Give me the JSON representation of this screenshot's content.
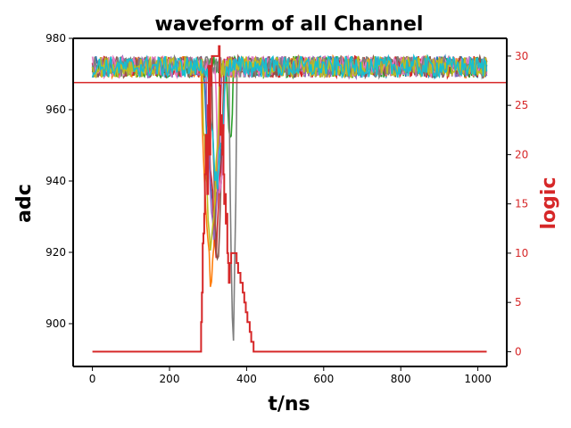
{
  "chart_data": {
    "type": "line",
    "title": "waveform of all Channel",
    "xlabel": "t/ns",
    "ylabel": "adc",
    "y2label": "logic",
    "xlim": [
      -50,
      1075
    ],
    "ylim": [
      888,
      980
    ],
    "y2lim": [
      -1.5,
      31.8
    ],
    "xticks": [
      0,
      200,
      400,
      600,
      800,
      1000
    ],
    "yticks": [
      900,
      920,
      940,
      960,
      980
    ],
    "y2ticks": [
      0,
      5,
      10,
      15,
      20,
      25,
      30
    ],
    "grid": false,
    "legend": "none",
    "colors": {
      "axis_right": "#d62728",
      "threshold": "#d62728",
      "logic": "#d62728"
    },
    "threshold_line": {
      "axis": "y",
      "value": 967.6
    },
    "adc_channels": [
      {
        "color": "#1f77b4",
        "baseline": 972,
        "min": 930,
        "dip_start": 290,
        "dip_end": 345
      },
      {
        "color": "#ff7f0e",
        "baseline": 972,
        "min": 911,
        "dip_start": 283,
        "dip_end": 330
      },
      {
        "color": "#2ca02c",
        "baseline": 972,
        "min": 949,
        "dip_start": 350,
        "dip_end": 365
      },
      {
        "color": "#d62728",
        "baseline": 972,
        "min": 920,
        "dip_start": 300,
        "dip_end": 340
      },
      {
        "color": "#9467bd",
        "baseline": 972,
        "min": 925,
        "dip_start": 295,
        "dip_end": 335
      },
      {
        "color": "#8c564b",
        "baseline": 972,
        "min": 914,
        "dip_start": 310,
        "dip_end": 340
      },
      {
        "color": "#e377c2",
        "baseline": 972,
        "min": 935,
        "dip_start": 320,
        "dip_end": 345
      },
      {
        "color": "#7f7f7f",
        "baseline": 972,
        "min": 892,
        "dip_start": 355,
        "dip_end": 375
      },
      {
        "color": "#bcbd22",
        "baseline": 972,
        "min": 922,
        "dip_start": 285,
        "dip_end": 330
      },
      {
        "color": "#17becf",
        "baseline": 972,
        "min": 940,
        "dip_start": 300,
        "dip_end": 345
      }
    ],
    "logic_series": {
      "x": [
        0,
        280,
        282,
        284,
        286,
        288,
        290,
        292,
        294,
        296,
        298,
        300,
        302,
        304,
        306,
        308,
        310,
        312,
        314,
        316,
        318,
        320,
        322,
        324,
        326,
        328,
        330,
        332,
        334,
        336,
        338,
        340,
        342,
        344,
        346,
        348,
        350,
        352,
        354,
        356,
        358,
        360,
        362,
        364,
        366,
        368,
        370,
        372,
        374,
        376,
        378,
        380,
        382,
        384,
        386,
        388,
        390,
        392,
        394,
        396,
        398,
        400,
        402,
        404,
        406,
        408,
        410,
        412,
        414,
        416,
        418,
        420,
        430,
        1023
      ],
      "y": [
        0,
        0,
        3,
        6,
        11,
        12,
        14,
        18,
        22,
        19,
        16,
        25,
        29,
        20,
        27,
        29,
        30,
        30,
        30,
        30,
        30,
        30,
        30,
        30,
        30,
        31,
        27,
        22,
        24,
        20,
        23,
        18,
        15,
        16,
        13,
        14,
        10,
        9,
        7,
        9,
        9,
        10,
        10,
        10,
        10,
        10,
        10,
        10,
        9,
        9,
        8,
        8,
        8,
        7,
        7,
        7,
        6,
        6,
        5,
        5,
        4,
        4,
        3,
        3,
        3,
        2,
        2,
        1,
        1,
        1,
        0,
        0,
        0,
        0
      ]
    }
  }
}
